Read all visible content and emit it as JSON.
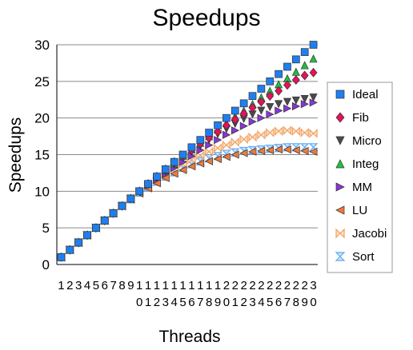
{
  "chart_data": {
    "type": "scatter",
    "title": "Speedups",
    "xlabel": "Threads",
    "ylabel": "Speedups",
    "x": [
      1,
      2,
      3,
      4,
      5,
      6,
      7,
      8,
      9,
      10,
      11,
      12,
      13,
      14,
      15,
      16,
      17,
      18,
      19,
      20,
      21,
      22,
      23,
      24,
      25,
      26,
      27,
      28,
      29,
      30
    ],
    "ylim": [
      0,
      30
    ],
    "yticks": [
      0,
      5,
      10,
      15,
      20,
      25,
      30
    ],
    "grid": true,
    "legend": "right",
    "series": [
      {
        "name": "Ideal",
        "marker": "square",
        "color": "#1e7ff0",
        "values": [
          1,
          2,
          3,
          4,
          5,
          6,
          7,
          8,
          9,
          10,
          11,
          12,
          13,
          14,
          15,
          16,
          17,
          18,
          19,
          20,
          21,
          22,
          23,
          24,
          25,
          26,
          27,
          28,
          29,
          30
        ]
      },
      {
        "name": "Fib",
        "marker": "diamond",
        "color": "#e8105a",
        "values": [
          1,
          2,
          3,
          4,
          5,
          6,
          7,
          8,
          9,
          10,
          11,
          12,
          13,
          14,
          14.8,
          15.6,
          16.5,
          17.3,
          18.1,
          19,
          19.8,
          20.6,
          21.4,
          22.2,
          23,
          23.7,
          24.5,
          25.2,
          25.8,
          26.2
        ]
      },
      {
        "name": "Micro",
        "marker": "triangle-down",
        "color": "#4a4a4a",
        "values": [
          1,
          2,
          3,
          4,
          5,
          6,
          7,
          8,
          9,
          10,
          10.9,
          11.8,
          12.8,
          13.7,
          14.6,
          15.4,
          16.2,
          17,
          17.8,
          18.5,
          19.2,
          19.9,
          20.5,
          21,
          21.5,
          21.9,
          22.2,
          22.4,
          22.6,
          22.8
        ]
      },
      {
        "name": "Integ",
        "marker": "triangle-up",
        "color": "#20c040",
        "values": [
          1,
          2,
          3,
          4,
          5,
          6,
          7,
          8,
          9,
          10,
          11,
          12,
          12.9,
          13.8,
          14.8,
          15.7,
          16.6,
          17.5,
          18.4,
          19.3,
          20.2,
          21,
          21.9,
          22.8,
          23.7,
          24.6,
          25.4,
          26.3,
          27.2,
          28.1
        ]
      },
      {
        "name": "MM",
        "marker": "triangle-right",
        "color": "#8a35d6",
        "values": [
          1,
          2,
          3,
          4,
          5,
          6,
          7,
          8,
          9,
          10,
          10.8,
          11.6,
          12.4,
          13.2,
          14,
          14.8,
          15.6,
          16.3,
          17,
          17.7,
          18.3,
          18.9,
          19.5,
          20,
          20.5,
          21,
          21.3,
          21.6,
          21.9,
          22.1
        ]
      },
      {
        "name": "LU",
        "marker": "triangle-left",
        "color": "#f07a3a",
        "values": [
          1,
          2,
          3,
          4,
          5,
          6,
          7,
          8,
          8.9,
          9.7,
          10.4,
          11.1,
          11.8,
          12.4,
          12.9,
          13.4,
          13.8,
          14.1,
          14.4,
          14.7,
          15,
          15.2,
          15.4,
          15.5,
          15.6,
          15.7,
          15.7,
          15.6,
          15.5,
          15.4
        ]
      },
      {
        "name": "Jacobi",
        "marker": "bowtie",
        "color": "#f0a060",
        "values": [
          1,
          2,
          3,
          4,
          5,
          6,
          7,
          8,
          9,
          9.9,
          10.7,
          11.5,
          12.3,
          13,
          13.7,
          14.3,
          14.9,
          15.4,
          15.9,
          16.3,
          16.7,
          17.1,
          17.4,
          17.7,
          18,
          18.2,
          18.3,
          18.2,
          18,
          17.9
        ]
      },
      {
        "name": "Sort",
        "marker": "hourglass",
        "color": "#60a8f0",
        "values": [
          1,
          2,
          3,
          4,
          5,
          6,
          7,
          8,
          8.9,
          9.8,
          10.6,
          11.3,
          12,
          12.6,
          13.2,
          13.7,
          14.1,
          14.5,
          14.8,
          15.1,
          15.3,
          15.5,
          15.6,
          15.7,
          15.8,
          15.9,
          16,
          16,
          16,
          16
        ]
      }
    ]
  }
}
